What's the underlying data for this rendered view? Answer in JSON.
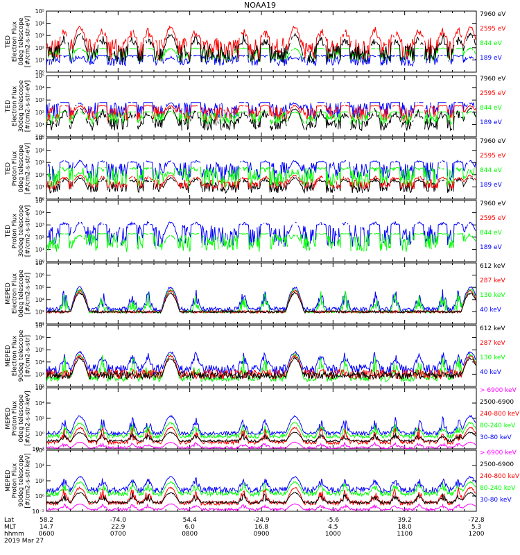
{
  "chart_data": {
    "type": "line",
    "title": "NOAA19",
    "date_label": "2019 Mar 27",
    "footer": {
      "rows": [
        {
          "label": "Lat",
          "values": [
            "58.2",
            "-74.0",
            "54.4",
            "-24.9",
            "-5.6",
            "39.2",
            "-72.8"
          ]
        },
        {
          "label": "MLT",
          "values": [
            "14.7",
            "22.9",
            "6.0",
            "16.8",
            "4.5",
            "18.0",
            "5.3"
          ]
        },
        {
          "label": "hhmm",
          "values": [
            "0600",
            "0700",
            "0800",
            "0900",
            "1000",
            "1100",
            "1200"
          ]
        }
      ]
    },
    "xlim": [
      0,
      360
    ],
    "x_unit": "minutes after 0600",
    "colors": {
      "black": "#000000",
      "red": "#ff0000",
      "green": "#00ff00",
      "blue": "#0000ff",
      "magenta": "#ff00ff"
    },
    "panels": [
      {
        "id": "ted-electron-0",
        "ylabel": [
          "TED",
          "Electron Flux",
          "0deg telescope",
          "[#/cm2-s-str-eV]"
        ],
        "log_range": [
          0,
          5
        ],
        "tick_labels": [
          "10⁰",
          "10¹",
          "10²",
          "10³",
          "10⁴",
          "10⁵"
        ],
        "legend": [
          {
            "text": "7960 eV",
            "color": "#000000"
          },
          {
            "text": "2595 eV",
            "color": "#ff0000"
          },
          {
            "text": "844 eV",
            "color": "#00ff00"
          },
          {
            "text": "189 eV",
            "color": "#0000ff"
          }
        ],
        "draw_order": [
          "blue",
          "red",
          "green",
          "black"
        ],
        "series_levels": {
          "red": [
            1.0,
            2.8
          ],
          "green": [
            0.8,
            1.9
          ],
          "blue": [
            0.5,
            1.4
          ],
          "black": [
            0.8,
            2.2
          ]
        },
        "series_peaks": {
          "red": 3.8,
          "green": 2.0,
          "blue": 1.2,
          "black": 3.2
        }
      },
      {
        "id": "ted-electron-30",
        "ylabel": [
          "TED",
          "Electron Flux",
          "30deg telescope",
          "[#/cm2-s-str-eV]"
        ],
        "log_range": [
          0,
          5
        ],
        "tick_labels": [
          "10⁰",
          "10¹",
          "10²",
          "10³",
          "10⁴",
          "10⁵"
        ],
        "legend": [
          {
            "text": "7960 eV",
            "color": "#000000"
          },
          {
            "text": "2595 eV",
            "color": "#ff0000"
          },
          {
            "text": "844 eV",
            "color": "#00ff00"
          },
          {
            "text": "189 eV",
            "color": "#0000ff"
          }
        ],
        "draw_order": [
          "blue",
          "red",
          "green",
          "black"
        ],
        "series_levels": {
          "red": [
            1.2,
            2.5
          ],
          "green": [
            1.0,
            2.0
          ],
          "blue": [
            1.5,
            2.8
          ],
          "black": [
            0.5,
            1.5
          ]
        },
        "series_peaks": {
          "red": 2.6,
          "green": 2.1,
          "blue": 2.8,
          "black": 2.4
        }
      },
      {
        "id": "ted-proton-0",
        "ylabel": [
          "TED",
          "Proton Flux",
          "0deg telescope",
          "[#/cm2-s-str-eV]"
        ],
        "log_range": [
          0,
          5
        ],
        "tick_labels": [
          "10⁰",
          "10¹",
          "10²",
          "10³",
          "10⁴",
          "10⁵"
        ],
        "legend": [
          {
            "text": "7960 eV",
            "color": "#000000"
          },
          {
            "text": "2595 eV",
            "color": "#ff0000"
          },
          {
            "text": "844 eV",
            "color": "#00ff00"
          },
          {
            "text": "189 eV",
            "color": "#0000ff"
          }
        ],
        "draw_order": [
          "black",
          "red",
          "blue",
          "green"
        ],
        "series_levels": {
          "red": [
            0.8,
            1.6
          ],
          "green": [
            1.0,
            2.6
          ],
          "blue": [
            1.5,
            3.0
          ],
          "black": [
            0.5,
            1.4
          ]
        },
        "series_peaks": {
          "red": 2.0,
          "green": 2.2,
          "blue": 3.2,
          "black": 1.8
        }
      },
      {
        "id": "ted-proton-30",
        "ylabel": [
          "TED",
          "Proton Flux",
          "30deg telescope",
          "[#/cm2-s-str-eV]"
        ],
        "log_range": [
          0,
          5
        ],
        "tick_labels": [
          "10⁰",
          "10¹",
          "10²",
          "10³",
          "10⁴",
          "10⁵"
        ],
        "legend": [
          {
            "text": "7960 eV",
            "color": "#000000"
          },
          {
            "text": "2595 eV",
            "color": "#ff0000"
          },
          {
            "text": "844 eV",
            "color": "#00ff00"
          },
          {
            "text": "189 eV",
            "color": "#0000ff"
          }
        ],
        "draw_order": [
          "blue",
          "green"
        ],
        "series_levels": {
          "green": [
            0.8,
            2.3
          ],
          "blue": [
            1.2,
            3.0
          ]
        },
        "series_peaks": {
          "green": 2.2,
          "blue": 3.3
        }
      },
      {
        "id": "meped-electron-0",
        "ylabel": [
          "MEPED",
          "Electron Flux",
          "0deg telescope",
          "[#/cm2-s-str]"
        ],
        "log_range": [
          2,
          7
        ],
        "tick_labels": [
          "10²",
          "10³",
          "10⁴",
          "10⁵",
          "10⁶",
          "10⁷"
        ],
        "legend": [
          {
            "text": "612 keV",
            "color": "#000000"
          },
          {
            "text": "287 keV",
            "color": "#ff0000"
          },
          {
            "text": "130 keV",
            "color": "#00ff00"
          },
          {
            "text": "40 keV",
            "color": "#0000ff"
          }
        ],
        "draw_order": [
          "blue",
          "green",
          "red",
          "black"
        ],
        "series_levels": {
          "red": [
            2.9,
            3.1
          ],
          "green": [
            2.9,
            3.1
          ],
          "blue": [
            3.0,
            3.4
          ],
          "black": [
            2.9,
            3.1
          ]
        },
        "series_peaks": {
          "red": 4.8,
          "green": 4.9,
          "blue": 5.1,
          "black": 4.6
        }
      },
      {
        "id": "meped-electron-90",
        "ylabel": [
          "MEPED",
          "Electron Flux",
          "90deg telescope",
          "[#/cm2-s-str]"
        ],
        "log_range": [
          2,
          7
        ],
        "tick_labels": [
          "10²",
          "10³",
          "10⁴",
          "10⁵",
          "10⁶",
          "10⁷"
        ],
        "legend": [
          {
            "text": "612 keV",
            "color": "#000000"
          },
          {
            "text": "287 keV",
            "color": "#ff0000"
          },
          {
            "text": "130 keV",
            "color": "#00ff00"
          },
          {
            "text": "40 keV",
            "color": "#0000ff"
          }
        ],
        "draw_order": [
          "blue",
          "green",
          "red",
          "black"
        ],
        "series_levels": {
          "red": [
            2.6,
            3.4
          ],
          "green": [
            2.4,
            2.9
          ],
          "blue": [
            3.0,
            3.8
          ],
          "black": [
            2.6,
            3.2
          ]
        },
        "series_peaks": {
          "red": 4.6,
          "green": 4.7,
          "blue": 4.9,
          "black": 4.4
        }
      },
      {
        "id": "meped-proton-0",
        "ylabel": [
          "MEPED",
          "Proton Flux",
          "0deg telescope",
          "[#/cm2-s-str-keV]"
        ],
        "log_range": [
          -2,
          6
        ],
        "tick_labels": [
          "10⁻²",
          "10⁰",
          "10²",
          "10⁴",
          "10⁶"
        ],
        "legend": [
          {
            "text": "> 6900 keV",
            "color": "#ff00ff"
          },
          {
            "text": "2500-6900",
            "color": "#000000"
          },
          {
            "text": "240-800 keV",
            "color": "#ff0000"
          },
          {
            "text": "80-240 keV",
            "color": "#00ff00"
          },
          {
            "text": "30-80 keV",
            "color": "#0000ff"
          }
        ],
        "draw_order": [
          "blue",
          "green",
          "red",
          "black",
          "magenta"
        ],
        "series_levels": {
          "red": [
            -1.4,
            -0.9
          ],
          "green": [
            -0.6,
            -0.1
          ],
          "blue": [
            -0.2,
            0.3
          ],
          "black": [
            -1.1,
            -0.8
          ],
          "magenta": [
            -2.0,
            -1.7
          ]
        },
        "series_peaks": {
          "red": 0.9,
          "green": 1.5,
          "blue": 2.4,
          "black": 0.2,
          "magenta": -1.1
        }
      },
      {
        "id": "meped-proton-90",
        "ylabel": [
          "MEPED",
          "Proton Flux",
          "90deg telescope",
          "[#/cm2-s-str-keV]"
        ],
        "log_range": [
          -2,
          6
        ],
        "tick_labels": [
          "10⁻²",
          "10⁰",
          "10²",
          "10⁴",
          "10⁶"
        ],
        "legend": [
          {
            "text": "> 6900 keV",
            "color": "#ff00ff"
          },
          {
            "text": "2500-6900",
            "color": "#000000"
          },
          {
            "text": "240-800 keV",
            "color": "#ff0000"
          },
          {
            "text": "80-240 keV",
            "color": "#00ff00"
          },
          {
            "text": "30-80 keV",
            "color": "#0000ff"
          }
        ],
        "draw_order": [
          "blue",
          "green",
          "red",
          "black",
          "magenta"
        ],
        "series_levels": {
          "red": [
            -1.2,
            -0.6
          ],
          "green": [
            0.0,
            0.6
          ],
          "blue": [
            0.4,
            1.2
          ],
          "black": [
            -1.0,
            -0.7
          ],
          "magenta": [
            -1.9,
            -1.6
          ]
        },
        "series_peaks": {
          "red": 1.2,
          "green": 1.9,
          "blue": 2.6,
          "black": 0.5,
          "magenta": -1.0
        }
      }
    ],
    "events": {
      "radiation_belt_passes_min": [
        28,
        104,
        208,
        355
      ],
      "auroral_bursts_min": [
        15,
        47,
        72,
        85,
        125,
        165,
        183,
        230,
        250,
        275,
        292,
        312,
        332,
        345
      ]
    }
  }
}
